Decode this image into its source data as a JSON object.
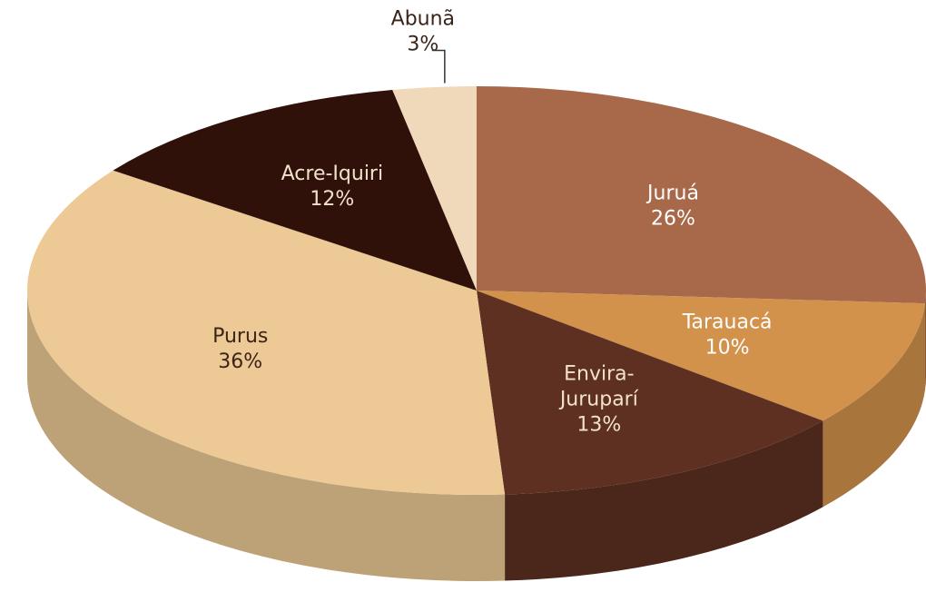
{
  "chart_data": {
    "type": "pie3d",
    "categories": [
      "Juruá",
      "Tarauacá",
      "Envira-\nJuruparí",
      "Purus",
      "Acre-Iquiri",
      "Abunã"
    ],
    "values": [
      26,
      10,
      13,
      36,
      12,
      3
    ],
    "value_labels": [
      "26%",
      "10%",
      "13%",
      "36%",
      "12%",
      "3%"
    ],
    "colors": [
      "#a8684a",
      "#d2924c",
      "#5e3021",
      "#ecc995",
      "#30110a",
      "#f0d9bb"
    ]
  }
}
